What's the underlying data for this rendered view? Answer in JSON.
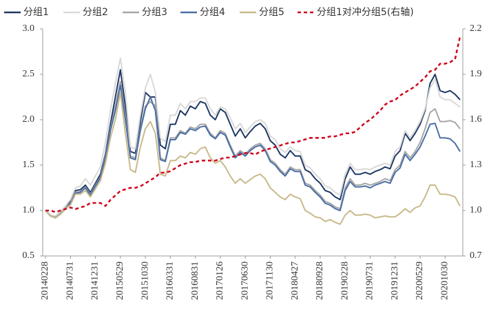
{
  "chart_data": {
    "type": "line",
    "categories": [
      "20140228",
      null,
      null,
      null,
      null,
      "20140731",
      null,
      null,
      null,
      null,
      "20141231",
      null,
      null,
      null,
      null,
      "20150529",
      null,
      null,
      null,
      null,
      "20151030",
      null,
      null,
      null,
      null,
      "20160331",
      null,
      null,
      null,
      null,
      "20160831",
      null,
      null,
      null,
      null,
      "20170126",
      null,
      null,
      null,
      null,
      "20170630",
      null,
      null,
      null,
      null,
      "20171130",
      null,
      null,
      null,
      null,
      "20180427",
      null,
      null,
      null,
      null,
      "20180928",
      null,
      null,
      null,
      null,
      "20190228",
      null,
      null,
      null,
      null,
      "20190731",
      null,
      null,
      null,
      null,
      "20191231",
      null,
      null,
      null,
      null,
      "20200529",
      null,
      null,
      null,
      null,
      "20201030",
      null,
      null,
      null
    ],
    "series": [
      {
        "name": "分组1",
        "color": "#1f3864",
        "values": [
          1.0,
          0.95,
          0.93,
          0.98,
          1.04,
          1.1,
          1.22,
          1.23,
          1.28,
          1.2,
          1.3,
          1.4,
          1.62,
          1.95,
          2.25,
          2.55,
          2.15,
          1.65,
          1.63,
          1.98,
          2.3,
          2.25,
          2.25,
          1.72,
          1.68,
          1.95,
          1.95,
          2.1,
          2.05,
          2.15,
          2.12,
          2.2,
          2.18,
          2.05,
          2.0,
          2.12,
          2.08,
          1.95,
          1.82,
          1.9,
          1.8,
          1.87,
          1.93,
          1.96,
          1.9,
          1.77,
          1.72,
          1.62,
          1.58,
          1.66,
          1.6,
          1.6,
          1.45,
          1.42,
          1.35,
          1.3,
          1.22,
          1.2,
          1.15,
          1.12,
          1.35,
          1.48,
          1.4,
          1.4,
          1.42,
          1.4,
          1.43,
          1.45,
          1.48,
          1.46,
          1.6,
          1.66,
          1.85,
          1.77,
          1.85,
          1.95,
          2.1,
          2.4,
          2.5,
          2.32,
          2.3,
          2.32,
          2.28,
          2.22
        ]
      },
      {
        "name": "分组2",
        "color": "#d9d9d9",
        "values": [
          1.0,
          0.95,
          0.94,
          0.99,
          1.05,
          1.12,
          1.25,
          1.27,
          1.35,
          1.28,
          1.38,
          1.48,
          1.75,
          2.1,
          2.4,
          2.68,
          2.3,
          1.7,
          1.68,
          2.05,
          2.35,
          2.5,
          2.3,
          1.8,
          1.76,
          2.05,
          2.05,
          2.18,
          2.12,
          2.2,
          2.2,
          2.24,
          2.24,
          2.12,
          2.05,
          2.14,
          2.12,
          2.02,
          1.9,
          1.96,
          1.86,
          1.92,
          1.98,
          2.0,
          1.96,
          1.82,
          1.78,
          1.68,
          1.64,
          1.7,
          1.66,
          1.65,
          1.5,
          1.47,
          1.4,
          1.35,
          1.27,
          1.25,
          1.2,
          1.17,
          1.4,
          1.52,
          1.45,
          1.45,
          1.46,
          1.45,
          1.48,
          1.5,
          1.52,
          1.5,
          1.65,
          1.7,
          1.88,
          1.8,
          1.88,
          1.98,
          2.12,
          2.35,
          2.45,
          2.25,
          2.22,
          2.22,
          2.18,
          2.14
        ]
      },
      {
        "name": "分组3",
        "color": "#a6a6a6",
        "values": [
          1.0,
          0.94,
          0.92,
          0.97,
          1.03,
          1.08,
          1.2,
          1.21,
          1.26,
          1.18,
          1.28,
          1.37,
          1.6,
          1.9,
          2.15,
          2.42,
          2.05,
          1.6,
          1.58,
          1.9,
          2.15,
          2.2,
          2.15,
          1.58,
          1.55,
          1.8,
          1.8,
          1.88,
          1.85,
          1.92,
          1.9,
          1.95,
          1.95,
          1.85,
          1.8,
          1.88,
          1.85,
          1.72,
          1.6,
          1.66,
          1.62,
          1.68,
          1.72,
          1.74,
          1.68,
          1.56,
          1.52,
          1.45,
          1.4,
          1.48,
          1.45,
          1.45,
          1.3,
          1.28,
          1.22,
          1.17,
          1.1,
          1.08,
          1.04,
          1.02,
          1.25,
          1.35,
          1.28,
          1.28,
          1.3,
          1.28,
          1.3,
          1.32,
          1.35,
          1.33,
          1.45,
          1.5,
          1.65,
          1.58,
          1.65,
          1.75,
          1.9,
          2.08,
          2.12,
          1.98,
          1.98,
          1.99,
          1.97,
          1.9
        ]
      },
      {
        "name": "分组4",
        "color": "#4a6fa5",
        "values": [
          1.0,
          0.94,
          0.92,
          0.96,
          1.02,
          1.07,
          1.19,
          1.2,
          1.25,
          1.17,
          1.27,
          1.36,
          1.58,
          1.88,
          2.1,
          2.38,
          2.0,
          1.58,
          1.56,
          1.88,
          2.12,
          2.25,
          2.1,
          1.56,
          1.54,
          1.78,
          1.78,
          1.86,
          1.84,
          1.9,
          1.88,
          1.92,
          1.93,
          1.83,
          1.79,
          1.86,
          1.83,
          1.7,
          1.58,
          1.64,
          1.6,
          1.66,
          1.7,
          1.72,
          1.66,
          1.54,
          1.5,
          1.43,
          1.38,
          1.46,
          1.43,
          1.43,
          1.28,
          1.26,
          1.2,
          1.15,
          1.08,
          1.06,
          1.02,
          1.0,
          1.22,
          1.32,
          1.26,
          1.26,
          1.27,
          1.25,
          1.28,
          1.3,
          1.32,
          1.3,
          1.42,
          1.47,
          1.62,
          1.55,
          1.62,
          1.7,
          1.82,
          1.95,
          1.96,
          1.8,
          1.8,
          1.79,
          1.74,
          1.65
        ]
      },
      {
        "name": "分组5",
        "color": "#c9b98a",
        "values": [
          1.0,
          0.94,
          0.92,
          0.96,
          1.02,
          1.06,
          1.18,
          1.18,
          1.22,
          1.15,
          1.24,
          1.33,
          1.52,
          1.8,
          2.0,
          2.3,
          1.85,
          1.45,
          1.42,
          1.7,
          1.9,
          1.98,
          1.85,
          1.4,
          1.38,
          1.55,
          1.55,
          1.6,
          1.58,
          1.64,
          1.62,
          1.68,
          1.7,
          1.58,
          1.52,
          1.55,
          1.48,
          1.38,
          1.3,
          1.35,
          1.3,
          1.34,
          1.38,
          1.4,
          1.35,
          1.25,
          1.2,
          1.15,
          1.12,
          1.18,
          1.15,
          1.13,
          1.0,
          0.97,
          0.93,
          0.92,
          0.88,
          0.9,
          0.87,
          0.85,
          0.95,
          1.0,
          0.95,
          0.95,
          0.96,
          0.95,
          0.92,
          0.93,
          0.94,
          0.93,
          0.93,
          0.97,
          1.02,
          0.98,
          1.03,
          1.05,
          1.15,
          1.28,
          1.28,
          1.18,
          1.18,
          1.17,
          1.15,
          1.05
        ]
      },
      {
        "name": "分组1对冲分组5(右轴)",
        "color": "#d0021b",
        "dashed": true,
        "axis": "y2",
        "values": [
          1.0,
          1.0,
          0.99,
          1.0,
          1.01,
          1.02,
          1.01,
          1.02,
          1.03,
          1.05,
          1.05,
          1.05,
          1.03,
          1.07,
          1.1,
          1.13,
          1.14,
          1.15,
          1.15,
          1.16,
          1.18,
          1.2,
          1.22,
          1.25,
          1.25,
          1.26,
          1.28,
          1.3,
          1.31,
          1.32,
          1.32,
          1.33,
          1.33,
          1.33,
          1.33,
          1.34,
          1.35,
          1.35,
          1.36,
          1.37,
          1.38,
          1.38,
          1.37,
          1.39,
          1.4,
          1.41,
          1.42,
          1.43,
          1.44,
          1.45,
          1.45,
          1.46,
          1.47,
          1.48,
          1.48,
          1.48,
          1.48,
          1.49,
          1.49,
          1.5,
          1.51,
          1.51,
          1.52,
          1.55,
          1.58,
          1.6,
          1.63,
          1.66,
          1.7,
          1.72,
          1.73,
          1.76,
          1.78,
          1.8,
          1.82,
          1.85,
          1.88,
          1.92,
          1.93,
          1.97,
          1.97,
          1.98,
          2.0,
          2.15
        ]
      }
    ],
    "ylim": [
      0.5,
      3.0
    ],
    "yticks": [
      0.5,
      {
        "value": 1.0,
        "label": "1.0"
      },
      1.5,
      {
        "value": 2.0,
        "label": "2.0"
      },
      2.5,
      {
        "value": 3.0,
        "label": "3.0"
      }
    ],
    "y2lim": [
      0.7,
      2.2
    ],
    "y2ticks": [
      0.7,
      {
        "value": 1.0,
        "label": "1.0"
      },
      1.3,
      1.6,
      1.9,
      2.2
    ],
    "legend": "top"
  }
}
